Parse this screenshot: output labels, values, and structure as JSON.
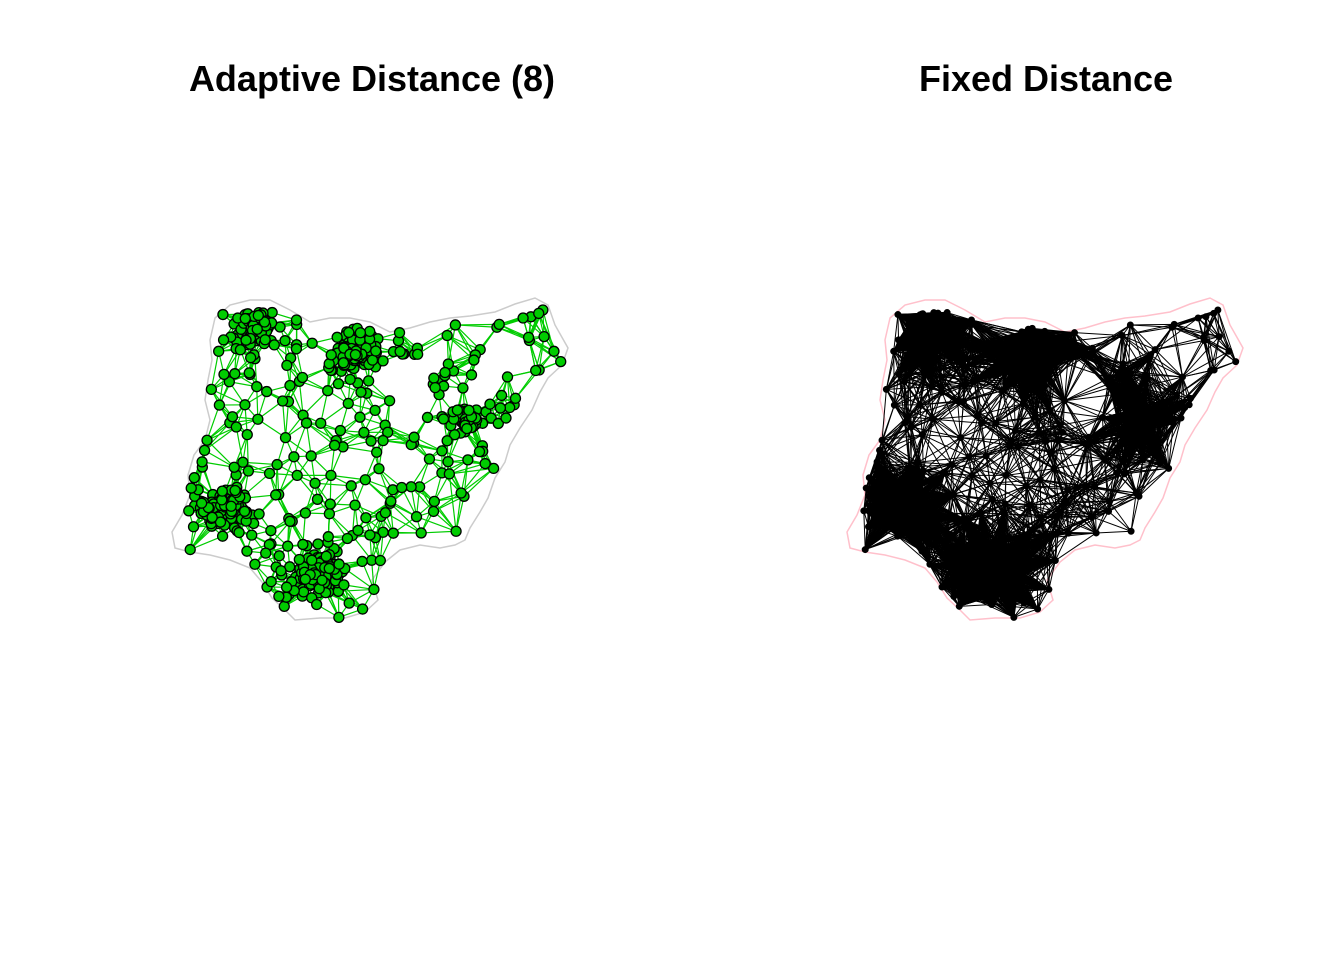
{
  "panels": [
    {
      "title": "Adaptive Distance (8)",
      "method": "k-nearest neighbours",
      "k": 8,
      "boundary_color": "#cccccc",
      "link_color": "#00cc00",
      "point_fill": "#00cc00",
      "point_stroke": "#000000"
    },
    {
      "title": "Fixed Distance",
      "method": "fixed distance band",
      "boundary_color": "#ffc0cb",
      "link_color": "#000000",
      "point_fill": "#000000",
      "point_stroke": "#000000"
    }
  ]
}
